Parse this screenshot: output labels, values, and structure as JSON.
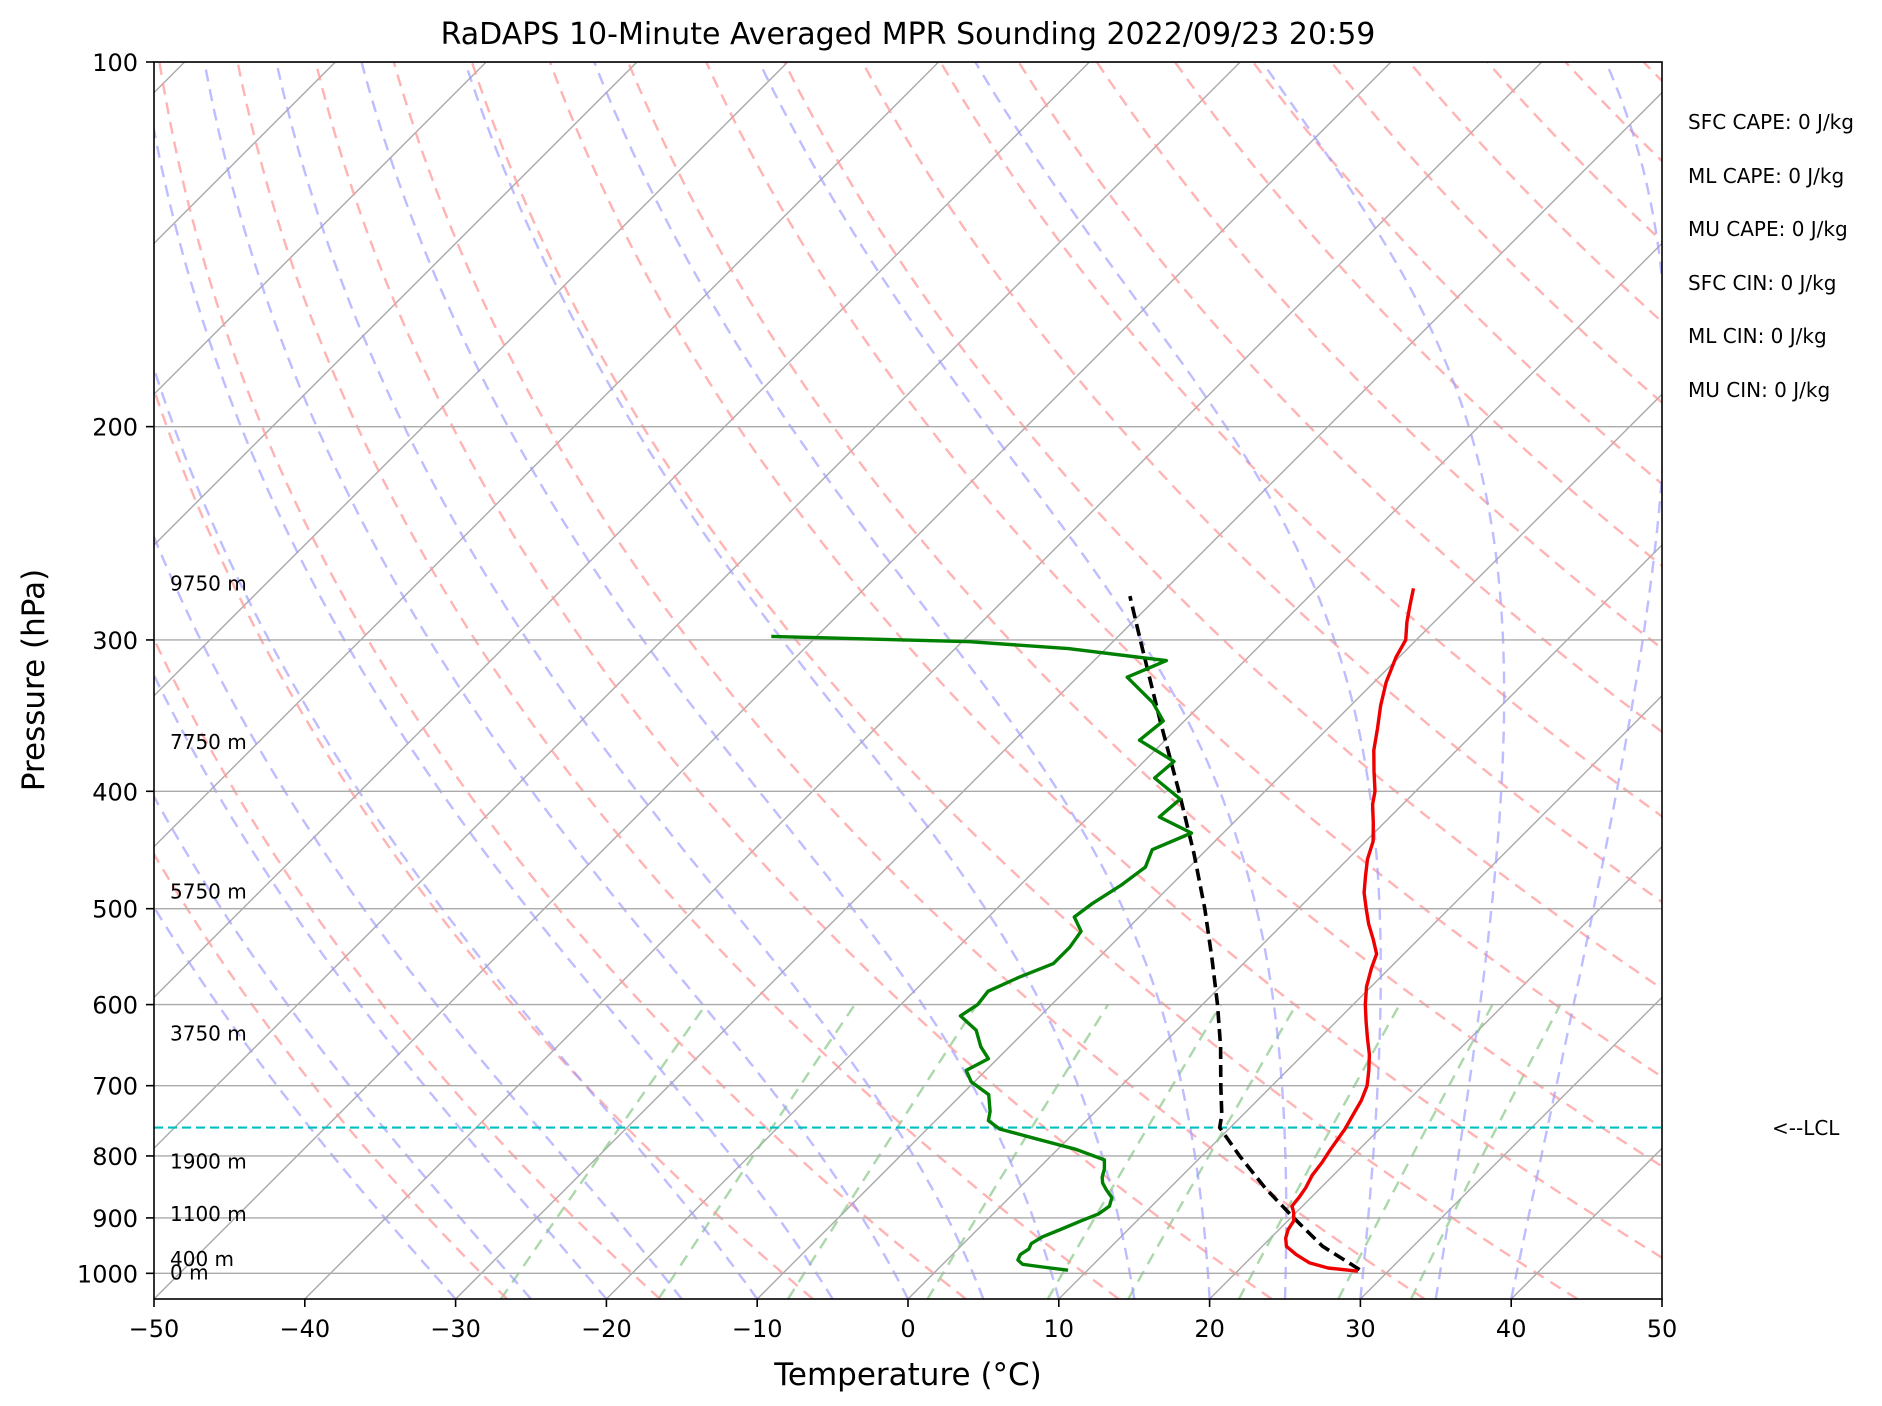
{
  "chart_data": {
    "type": "line",
    "title": "RaDAPS 10-Minute Averaged MPR Sounding 2022/09/23 20:59",
    "xlabel": "Temperature (°C)",
    "ylabel": "Pressure (hPa)",
    "xlim": [
      -50,
      50
    ],
    "ylim": [
      1050,
      100
    ],
    "y_scale": "log",
    "x_ticks": [
      "−50",
      "−40",
      "−30",
      "−20",
      "−10",
      "0",
      "10",
      "20",
      "30",
      "40",
      "50"
    ],
    "y_ticks": [
      "100",
      "200",
      "300",
      "400",
      "500",
      "600",
      "700",
      "800",
      "900",
      "1000"
    ],
    "grid": true,
    "series": [
      {
        "color": "#ee0000",
        "points": [
          [
            996,
            28.0
          ],
          [
            990,
            25.8
          ],
          [
            980,
            24.2
          ],
          [
            965,
            22.8
          ],
          [
            950,
            21.6
          ],
          [
            935,
            21.0
          ],
          [
            920,
            20.6
          ],
          [
            905,
            20.4
          ],
          [
            890,
            19.8
          ],
          [
            880,
            19.3
          ],
          [
            866,
            19.2
          ],
          [
            850,
            19.0
          ],
          [
            830,
            18.6
          ],
          [
            810,
            18.4
          ],
          [
            790,
            18.1
          ],
          [
            760,
            17.7
          ],
          [
            740,
            17.3
          ],
          [
            720,
            16.9
          ],
          [
            700,
            16.3
          ],
          [
            680,
            15.4
          ],
          [
            660,
            14.4
          ],
          [
            640,
            13.2
          ],
          [
            620,
            12.0
          ],
          [
            600,
            10.8
          ],
          [
            580,
            9.7
          ],
          [
            560,
            8.8
          ],
          [
            545,
            8.2
          ],
          [
            530,
            7.0
          ],
          [
            515,
            5.7
          ],
          [
            500,
            4.5
          ],
          [
            485,
            3.3
          ],
          [
            470,
            2.3
          ],
          [
            455,
            1.3
          ],
          [
            440,
            0.5
          ],
          [
            425,
            -0.7
          ],
          [
            410,
            -2.0
          ],
          [
            400,
            -2.7
          ],
          [
            385,
            -4.1
          ],
          [
            370,
            -5.5
          ],
          [
            355,
            -6.7
          ],
          [
            340,
            -8.0
          ],
          [
            325,
            -9.2
          ],
          [
            310,
            -10.2
          ],
          [
            300,
            -10.7
          ],
          [
            290,
            -11.8
          ],
          [
            280,
            -12.8
          ],
          [
            272,
            -13.6
          ]
        ]
      },
      {
        "color": "#008000",
        "points": [
          [
            994,
            8.7
          ],
          [
            988,
            6.8
          ],
          [
            983,
            5.3
          ],
          [
            975,
            4.7
          ],
          [
            965,
            4.5
          ],
          [
            955,
            4.7
          ],
          [
            945,
            4.5
          ],
          [
            933,
            4.8
          ],
          [
            920,
            5.5
          ],
          [
            905,
            6.3
          ],
          [
            893,
            7.0
          ],
          [
            880,
            7.2
          ],
          [
            866,
            6.8
          ],
          [
            853,
            5.9
          ],
          [
            842,
            5.2
          ],
          [
            833,
            4.8
          ],
          [
            820,
            4.4
          ],
          [
            806,
            3.8
          ],
          [
            790,
            1.2
          ],
          [
            775,
            -2.0
          ],
          [
            760,
            -5.2
          ],
          [
            748,
            -6.5
          ],
          [
            735,
            -7.0
          ],
          [
            712,
            -8.2
          ],
          [
            695,
            -10.2
          ],
          [
            680,
            -11.3
          ],
          [
            665,
            -10.6
          ],
          [
            650,
            -11.9
          ],
          [
            630,
            -13.3
          ],
          [
            613,
            -15.3
          ],
          [
            600,
            -14.9
          ],
          [
            585,
            -15.1
          ],
          [
            570,
            -14.0
          ],
          [
            555,
            -12.6
          ],
          [
            538,
            -12.6
          ],
          [
            522,
            -12.9
          ],
          [
            508,
            -14.3
          ],
          [
            495,
            -14.0
          ],
          [
            478,
            -13.3
          ],
          [
            462,
            -12.9
          ],
          [
            447,
            -13.6
          ],
          [
            433,
            -12.1
          ],
          [
            420,
            -15.3
          ],
          [
            406,
            -15.1
          ],
          [
            390,
            -18.2
          ],
          [
            378,
            -18.0
          ],
          [
            363,
            -21.7
          ],
          [
            350,
            -21.4
          ],
          [
            338,
            -23.3
          ],
          [
            322,
            -26.7
          ],
          [
            312,
            -25.2
          ],
          [
            305,
            -32.5
          ],
          [
            301,
            -39.5
          ],
          [
            298,
            -53.0
          ]
        ]
      },
      {
        "color": "#000000",
        "points": [
          [
            993,
            28.0
          ],
          [
            950,
            24.0
          ],
          [
            900,
            20.2
          ],
          [
            850,
            16.3
          ],
          [
            800,
            12.5
          ],
          [
            758,
            9.3
          ],
          [
            740,
            8.6
          ],
          [
            700,
            6.6
          ],
          [
            650,
            4.0
          ],
          [
            600,
            1.0
          ],
          [
            550,
            -2.4
          ],
          [
            500,
            -6.2
          ],
          [
            450,
            -10.6
          ],
          [
            400,
            -15.7
          ],
          [
            350,
            -21.6
          ],
          [
            300,
            -28.3
          ],
          [
            276,
            -31.9
          ]
        ]
      }
    ],
    "lcl_pressure": 758,
    "lcl_label": "<--LCL",
    "height_labels": [
      {
        "p": 1000,
        "label": "0 m"
      },
      {
        "p": 975,
        "label": "400 m"
      },
      {
        "p": 895,
        "label": "1100 m"
      },
      {
        "p": 810,
        "label": "1900 m"
      },
      {
        "p": 635,
        "label": "3750 m"
      },
      {
        "p": 485,
        "label": "5750 m"
      },
      {
        "p": 365,
        "label": "7750 m"
      },
      {
        "p": 270,
        "label": "9750 m"
      }
    ],
    "annotations": [
      "SFC CAPE: 0 J/kg",
      "ML CAPE: 0 J/kg",
      "MU CAPE: 0 J/kg",
      "SFC CIN: 0 J/kg",
      "ML CIN: 0 J/kg",
      "MU CIN: 0 J/kg"
    ],
    "colors": {
      "temperature": "#ee0000",
      "dewpoint": "#008000",
      "parcel": "#000000",
      "isotherm": "#aaaaaa",
      "dry_adiabat": "#ff9999",
      "moist_adiabat": "#9999ff",
      "mixing_ratio": "#88c888",
      "lcl": "#00bfbf"
    }
  }
}
